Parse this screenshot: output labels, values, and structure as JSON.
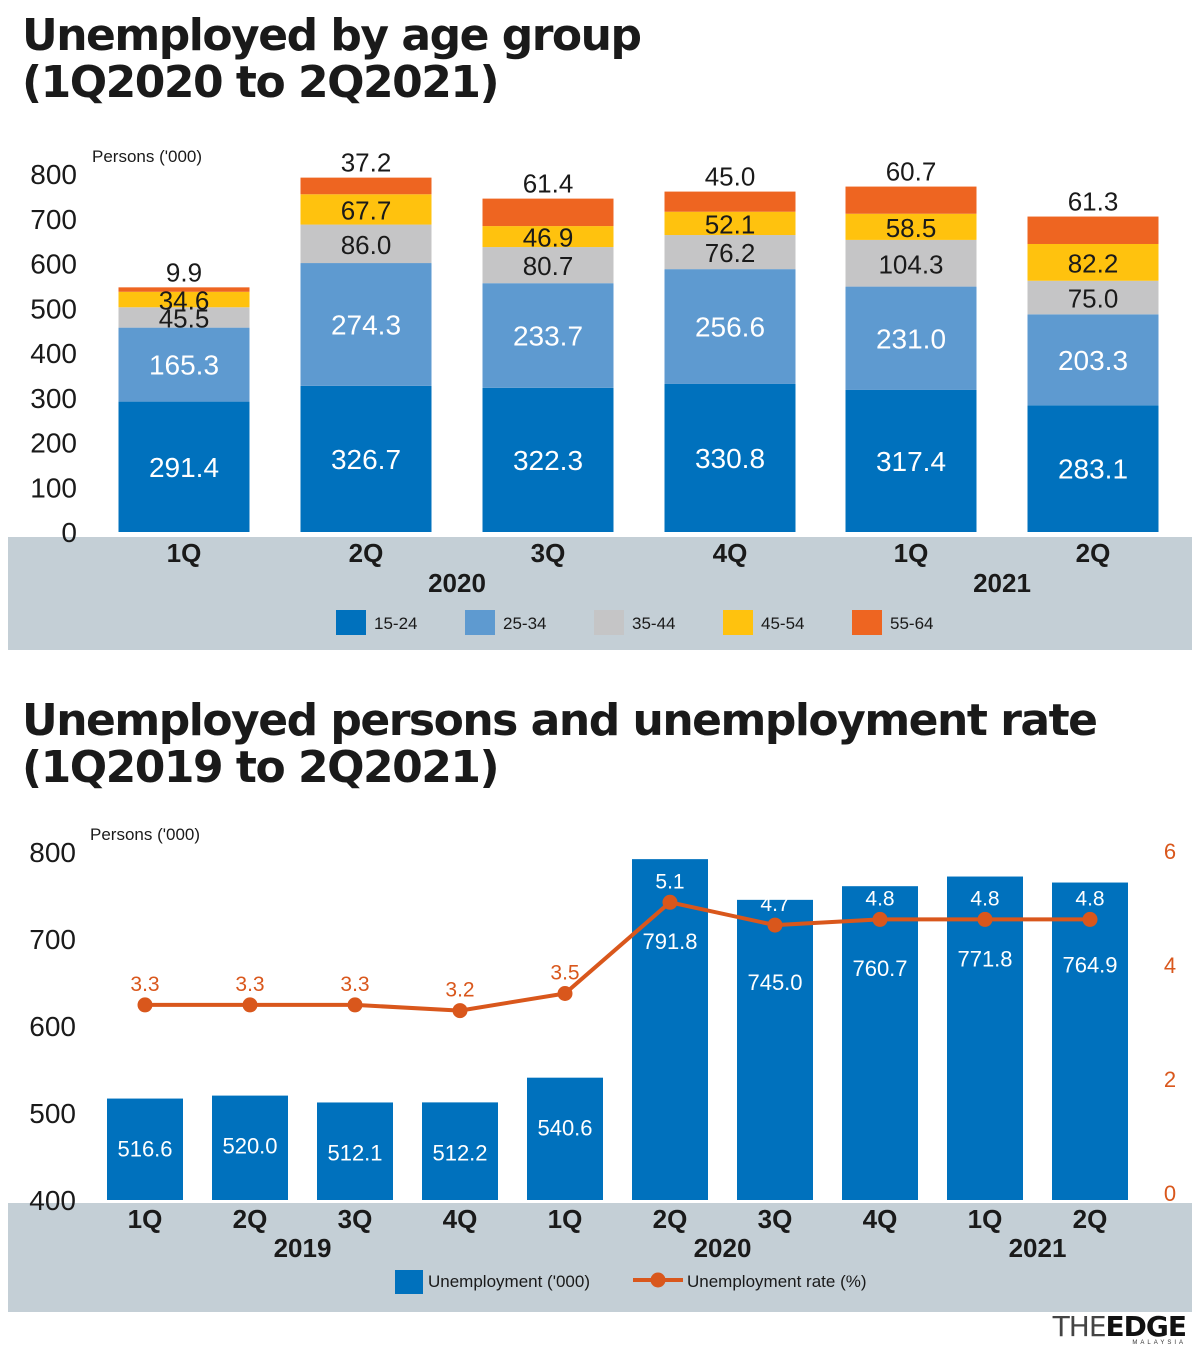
{
  "colors": {
    "c15_24": "#0071bd",
    "c25_34": "#5e9ad0",
    "c35_44": "#c5c5c6",
    "c45_54": "#ffc20e",
    "c55_64": "#ee6521",
    "bar2": "#0071bd",
    "line": "#d9571c",
    "band": "#c4cfd6"
  },
  "logo": {
    "the": "THE",
    "edge": "EDGE",
    "sub": "MALAYSIA"
  },
  "chart_data": [
    {
      "type": "bar",
      "stacked": true,
      "title_line1": "Unemployed by age group",
      "title_line2": "(1Q2020 to 2Q2021)",
      "ylabel": "Persons ('000)",
      "ylim": [
        0,
        800
      ],
      "yticks": [
        0,
        100,
        200,
        300,
        400,
        500,
        600,
        700,
        800
      ],
      "categories": [
        "1Q",
        "2Q",
        "3Q",
        "4Q",
        "1Q",
        "2Q"
      ],
      "years": [
        {
          "label": "2020",
          "under": [
            0,
            3
          ]
        },
        {
          "label": "2021",
          "under": [
            4,
            5
          ]
        }
      ],
      "series": [
        {
          "name": "15-24",
          "color": "#0071bd",
          "values": [
            291.4,
            326.7,
            322.3,
            330.8,
            317.4,
            283.1
          ]
        },
        {
          "name": "25-34",
          "color": "#5e9ad0",
          "values": [
            165.3,
            274.3,
            233.7,
            256.6,
            231.0,
            203.3
          ]
        },
        {
          "name": "35-44",
          "color": "#c5c5c6",
          "values": [
            45.5,
            86.0,
            80.7,
            76.2,
            104.3,
            75.0
          ]
        },
        {
          "name": "45-54",
          "color": "#ffc20e",
          "values": [
            34.6,
            67.7,
            46.9,
            52.1,
            58.5,
            82.2
          ]
        },
        {
          "name": "55-64",
          "color": "#ee6521",
          "values": [
            9.9,
            37.2,
            61.4,
            45.0,
            60.7,
            61.3
          ]
        }
      ],
      "legend": [
        "15-24",
        "25-34",
        "35-44",
        "45-54",
        "55-64"
      ],
      "legend_position": "bottom"
    },
    {
      "type": "bar+line",
      "title_line1": "Unemployed persons and unemployment rate",
      "title_line2": "(1Q2019 to 2Q2021)",
      "ylabel": "Persons ('000)",
      "ylim": [
        400,
        800
      ],
      "yticks": [
        400,
        500,
        600,
        700,
        800
      ],
      "y2lim": [
        0,
        6
      ],
      "y2ticks": [
        0,
        2,
        4,
        6
      ],
      "categories": [
        "1Q",
        "2Q",
        "3Q",
        "4Q",
        "1Q",
        "2Q",
        "3Q",
        "4Q",
        "1Q",
        "2Q"
      ],
      "years": [
        {
          "label": "2019",
          "under": [
            0,
            3
          ]
        },
        {
          "label": "2020",
          "under": [
            4,
            7
          ]
        },
        {
          "label": "2021",
          "under": [
            8,
            9
          ]
        }
      ],
      "series": [
        {
          "name": "Unemployment ('000)",
          "type": "bar",
          "color": "#0071bd",
          "values": [
            516.6,
            520.0,
            512.1,
            512.2,
            540.6,
            791.8,
            745.0,
            760.7,
            771.8,
            764.9
          ]
        },
        {
          "name": "Unemployment rate (%)",
          "type": "line",
          "axis": "right",
          "color": "#d9571c",
          "values": [
            3.3,
            3.3,
            3.3,
            3.2,
            3.5,
            5.1,
            4.7,
            4.8,
            4.8,
            4.8
          ]
        }
      ],
      "legend": [
        "Unemployment ('000)",
        "Unemployment rate (%)"
      ],
      "legend_position": "bottom"
    }
  ]
}
